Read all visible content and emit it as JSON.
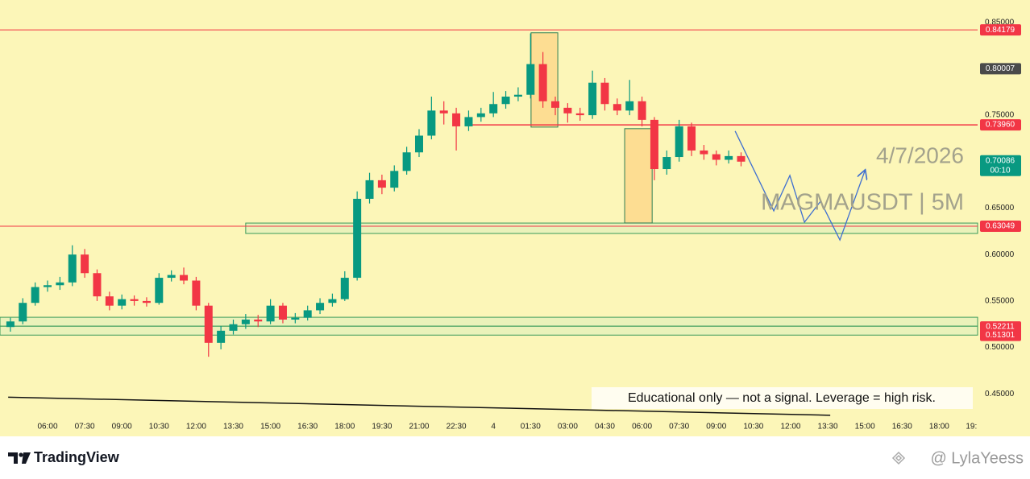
{
  "chart_data": {
    "type": "candlestick",
    "date_label": "4/7/2026",
    "symbol_label": "MAGMAUSDT | 5M",
    "note": "Educational only — not a signal. Leverage  = high risk.",
    "up_color": "#089981",
    "down_color": "#f23645",
    "x": [
      4.5,
      5,
      5.5,
      6,
      6.5,
      7,
      7.5,
      8,
      8.5,
      9,
      9.5,
      10,
      10.5,
      11,
      11.5,
      12,
      12.5,
      13,
      13.5,
      14,
      14.5,
      15,
      15.5,
      16,
      16.5,
      17,
      17.5,
      18,
      18.5,
      19,
      19.5,
      20,
      20.5,
      21,
      21.5,
      22,
      22.5,
      23,
      23.5,
      24,
      24.5,
      25,
      25.5,
      26,
      26.5,
      27,
      27.5,
      28,
      28.5,
      29,
      29.5,
      30,
      30.5,
      31,
      31.5,
      32,
      32.5,
      33,
      33.5,
      34
    ],
    "open": [
      0.522,
      0.528,
      0.548,
      0.565,
      0.567,
      0.57,
      0.6,
      0.58,
      0.555,
      0.545,
      0.552,
      0.55,
      0.548,
      0.575,
      0.578,
      0.572,
      0.545,
      0.505,
      0.518,
      0.525,
      0.53,
      0.528,
      0.545,
      0.53,
      0.532,
      0.54,
      0.548,
      0.552,
      0.575,
      0.66,
      0.68,
      0.672,
      0.69,
      0.71,
      0.728,
      0.755,
      0.752,
      0.738,
      0.748,
      0.752,
      0.762,
      0.77,
      0.772,
      0.805,
      0.765,
      0.758,
      0.752,
      0.75,
      0.785,
      0.762,
      0.755,
      0.765,
      0.745,
      0.692,
      0.705,
      0.738,
      0.712,
      0.708,
      0.702,
      0.706
    ],
    "high": [
      0.532,
      0.553,
      0.57,
      0.572,
      0.576,
      0.61,
      0.606,
      0.584,
      0.56,
      0.557,
      0.556,
      0.554,
      0.58,
      0.583,
      0.586,
      0.576,
      0.548,
      0.523,
      0.53,
      0.536,
      0.535,
      0.552,
      0.548,
      0.537,
      0.545,
      0.553,
      0.558,
      0.582,
      0.668,
      0.688,
      0.686,
      0.696,
      0.716,
      0.735,
      0.77,
      0.765,
      0.758,
      0.755,
      0.758,
      0.775,
      0.776,
      0.78,
      0.838,
      0.818,
      0.77,
      0.763,
      0.758,
      0.798,
      0.79,
      0.768,
      0.788,
      0.77,
      0.748,
      0.712,
      0.745,
      0.742,
      0.718,
      0.712,
      0.712,
      0.71
    ],
    "low": [
      0.517,
      0.525,
      0.545,
      0.56,
      0.562,
      0.566,
      0.575,
      0.55,
      0.54,
      0.541,
      0.545,
      0.544,
      0.546,
      0.571,
      0.568,
      0.54,
      0.49,
      0.498,
      0.514,
      0.52,
      0.522,
      0.525,
      0.526,
      0.526,
      0.529,
      0.536,
      0.544,
      0.55,
      0.572,
      0.655,
      0.665,
      0.668,
      0.686,
      0.705,
      0.724,
      0.74,
      0.712,
      0.733,
      0.743,
      0.748,
      0.757,
      0.765,
      0.768,
      0.758,
      0.75,
      0.742,
      0.744,
      0.746,
      0.755,
      0.75,
      0.75,
      0.738,
      0.68,
      0.686,
      0.7,
      0.706,
      0.702,
      0.696,
      0.698,
      0.695
    ],
    "close": [
      0.528,
      0.548,
      0.565,
      0.567,
      0.57,
      0.6,
      0.58,
      0.555,
      0.545,
      0.552,
      0.55,
      0.548,
      0.575,
      0.578,
      0.572,
      0.545,
      0.505,
      0.518,
      0.525,
      0.53,
      0.528,
      0.545,
      0.53,
      0.532,
      0.54,
      0.548,
      0.552,
      0.575,
      0.66,
      0.68,
      0.672,
      0.69,
      0.71,
      0.728,
      0.755,
      0.752,
      0.738,
      0.748,
      0.752,
      0.762,
      0.77,
      0.772,
      0.805,
      0.765,
      0.758,
      0.752,
      0.75,
      0.785,
      0.762,
      0.755,
      0.765,
      0.745,
      0.692,
      0.705,
      0.738,
      0.712,
      0.708,
      0.702,
      0.706,
      0.7
    ],
    "xlim": [
      4.08,
      43.55
    ],
    "ylim": [
      0.426,
      0.874
    ],
    "xticks": [
      {
        "value": 6,
        "label": "06:00"
      },
      {
        "value": 7.5,
        "label": "07:30"
      },
      {
        "value": 9,
        "label": "09:00"
      },
      {
        "value": 10.5,
        "label": "10:30"
      },
      {
        "value": 12,
        "label": "12:00"
      },
      {
        "value": 13.5,
        "label": "13:30"
      },
      {
        "value": 15,
        "label": "15:00"
      },
      {
        "value": 16.5,
        "label": "16:30"
      },
      {
        "value": 18,
        "label": "18:00"
      },
      {
        "value": 19.5,
        "label": "19:30"
      },
      {
        "value": 21,
        "label": "21:00"
      },
      {
        "value": 22.5,
        "label": "22:30"
      },
      {
        "value": 24,
        "label": "4"
      },
      {
        "value": 25.5,
        "label": "01:30"
      },
      {
        "value": 27,
        "label": "03:00"
      },
      {
        "value": 28.5,
        "label": "04:30"
      },
      {
        "value": 30,
        "label": "06:00"
      },
      {
        "value": 31.5,
        "label": "07:30"
      },
      {
        "value": 33,
        "label": "09:00"
      },
      {
        "value": 34.5,
        "label": "10:30"
      },
      {
        "value": 36,
        "label": "12:00"
      },
      {
        "value": 37.5,
        "label": "13:30"
      },
      {
        "value": 39,
        "label": "15:00"
      },
      {
        "value": 40.5,
        "label": "16:30"
      },
      {
        "value": 42,
        "label": "18:00"
      },
      {
        "value": 43.3,
        "label": "19:"
      }
    ],
    "yticks": [
      {
        "value": 0.45,
        "label": "0.45000"
      },
      {
        "value": 0.5,
        "label": "0.50000"
      },
      {
        "value": 0.55,
        "label": "0.55000"
      },
      {
        "value": 0.6,
        "label": "0.60000"
      },
      {
        "value": 0.65,
        "label": "0.65000"
      },
      {
        "value": 0.7,
        "label": "0.70000"
      },
      {
        "value": 0.75,
        "label": "0.75000"
      },
      {
        "value": 0.8,
        "label": "0.80000"
      },
      {
        "value": 0.85,
        "label": "0.85000"
      }
    ],
    "price_tags": [
      {
        "value": 0.84179,
        "color": "#f23645",
        "line": true
      },
      {
        "value": 0.80007,
        "color": "#4a4a4a"
      },
      {
        "value": 0.7396,
        "label": "0.73960",
        "color": "#f23645",
        "line_from": 23.12
      },
      {
        "value": 0.70086,
        "sub": "00:10",
        "color": "#089981"
      },
      {
        "value": 0.63049,
        "color": "#f23645",
        "line": true
      },
      {
        "value": 0.52211,
        "color": "#f23645"
      },
      {
        "value": 0.51301,
        "color": "#f23645"
      }
    ],
    "zones": [
      {
        "x0": 14.0,
        "top": 0.6339,
        "bottom": 0.6227
      },
      {
        "top": 0.5325,
        "bottom": 0.5229
      },
      {
        "top": 0.5229,
        "bottom": 0.5133
      }
    ],
    "boxes": [
      {
        "x0": 25.52,
        "x1": 26.6,
        "top": 0.8387,
        "bottom": 0.7372
      },
      {
        "x0": 29.3,
        "x1": 30.41,
        "top": 0.7355,
        "bottom": 0.634
      }
    ],
    "trendline": {
      "x": [
        4.41,
        37.6
      ],
      "y": [
        0.4465,
        0.427
      ]
    },
    "projection": {
      "color": "#3f6fd0",
      "x": [
        33.76,
        35.32,
        35.97,
        36.56,
        37.21,
        37.99,
        39.0
      ],
      "y": [
        0.7329,
        0.647,
        0.6851,
        0.6348,
        0.6574,
        0.6157,
        0.6903
      ]
    }
  },
  "footer": {
    "brand": "TradingView",
    "watermark": "@ LylaYeess"
  }
}
